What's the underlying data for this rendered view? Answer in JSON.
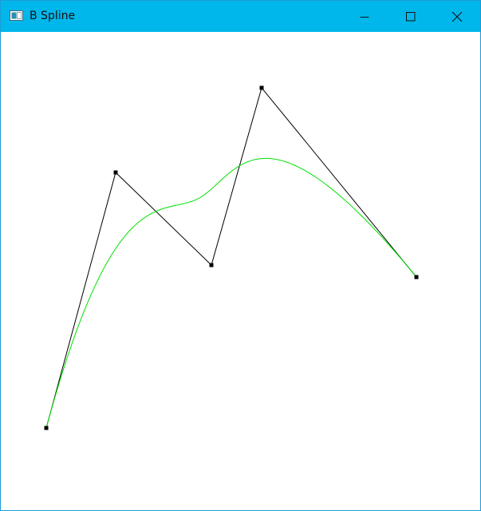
{
  "window": {
    "title": "B Spline",
    "titlebar_color": "#00b7eb",
    "controls": {
      "minimize": "minimize-icon",
      "maximize": "maximize-icon",
      "close": "close-icon"
    }
  },
  "canvas": {
    "background": "#ffffff",
    "control_polygon_color": "#000000",
    "curve_color": "#00e000",
    "curve_type": "B-spline"
  }
}
